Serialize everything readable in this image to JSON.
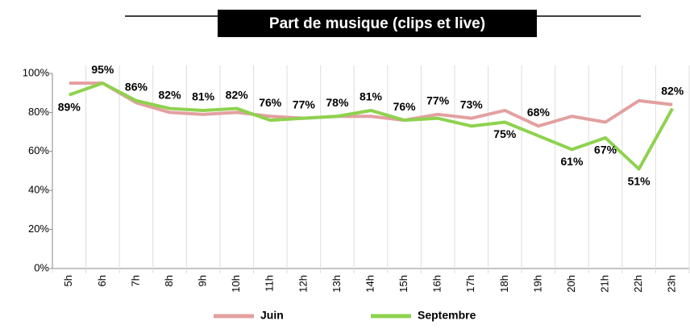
{
  "chart_data": {
    "type": "line",
    "title": "Part de musique (clips et live)",
    "categories": [
      "5h",
      "6h",
      "7h",
      "8h",
      "9h",
      "10h",
      "11h",
      "12h",
      "13h",
      "14h",
      "15h",
      "16h",
      "17h",
      "18h",
      "19h",
      "20h",
      "21h",
      "22h",
      "23h"
    ],
    "series": [
      {
        "name": "Juin",
        "color": "#e3a0a0",
        "values": [
          95,
          95,
          85,
          80,
          79,
          80,
          78,
          77,
          78,
          78,
          76,
          79,
          77,
          81,
          73,
          78,
          75,
          86,
          84
        ]
      },
      {
        "name": "Septembre",
        "color": "#8ed24e",
        "values": [
          89,
          95,
          86,
          82,
          81,
          82,
          76,
          77,
          78,
          81,
          76,
          77,
          73,
          75,
          68,
          61,
          67,
          51,
          82
        ],
        "value_labels": [
          "89%",
          "95%",
          "86%",
          "82%",
          "81%",
          "82%",
          "76%",
          "77%",
          "78%",
          "81%",
          "76%",
          "77%",
          "73%",
          "75%",
          "68%",
          "61%",
          "67%",
          "51%",
          "82%"
        ]
      }
    ],
    "ylim": [
      0,
      100
    ],
    "yticks": [
      {
        "value": 0,
        "label": "0%"
      },
      {
        "value": 20,
        "label": "20%"
      },
      {
        "value": 40,
        "label": "40%"
      },
      {
        "value": 60,
        "label": "60%"
      },
      {
        "value": 80,
        "label": "80%"
      },
      {
        "value": 100,
        "label": "100%"
      }
    ],
    "legend": "bottom"
  }
}
